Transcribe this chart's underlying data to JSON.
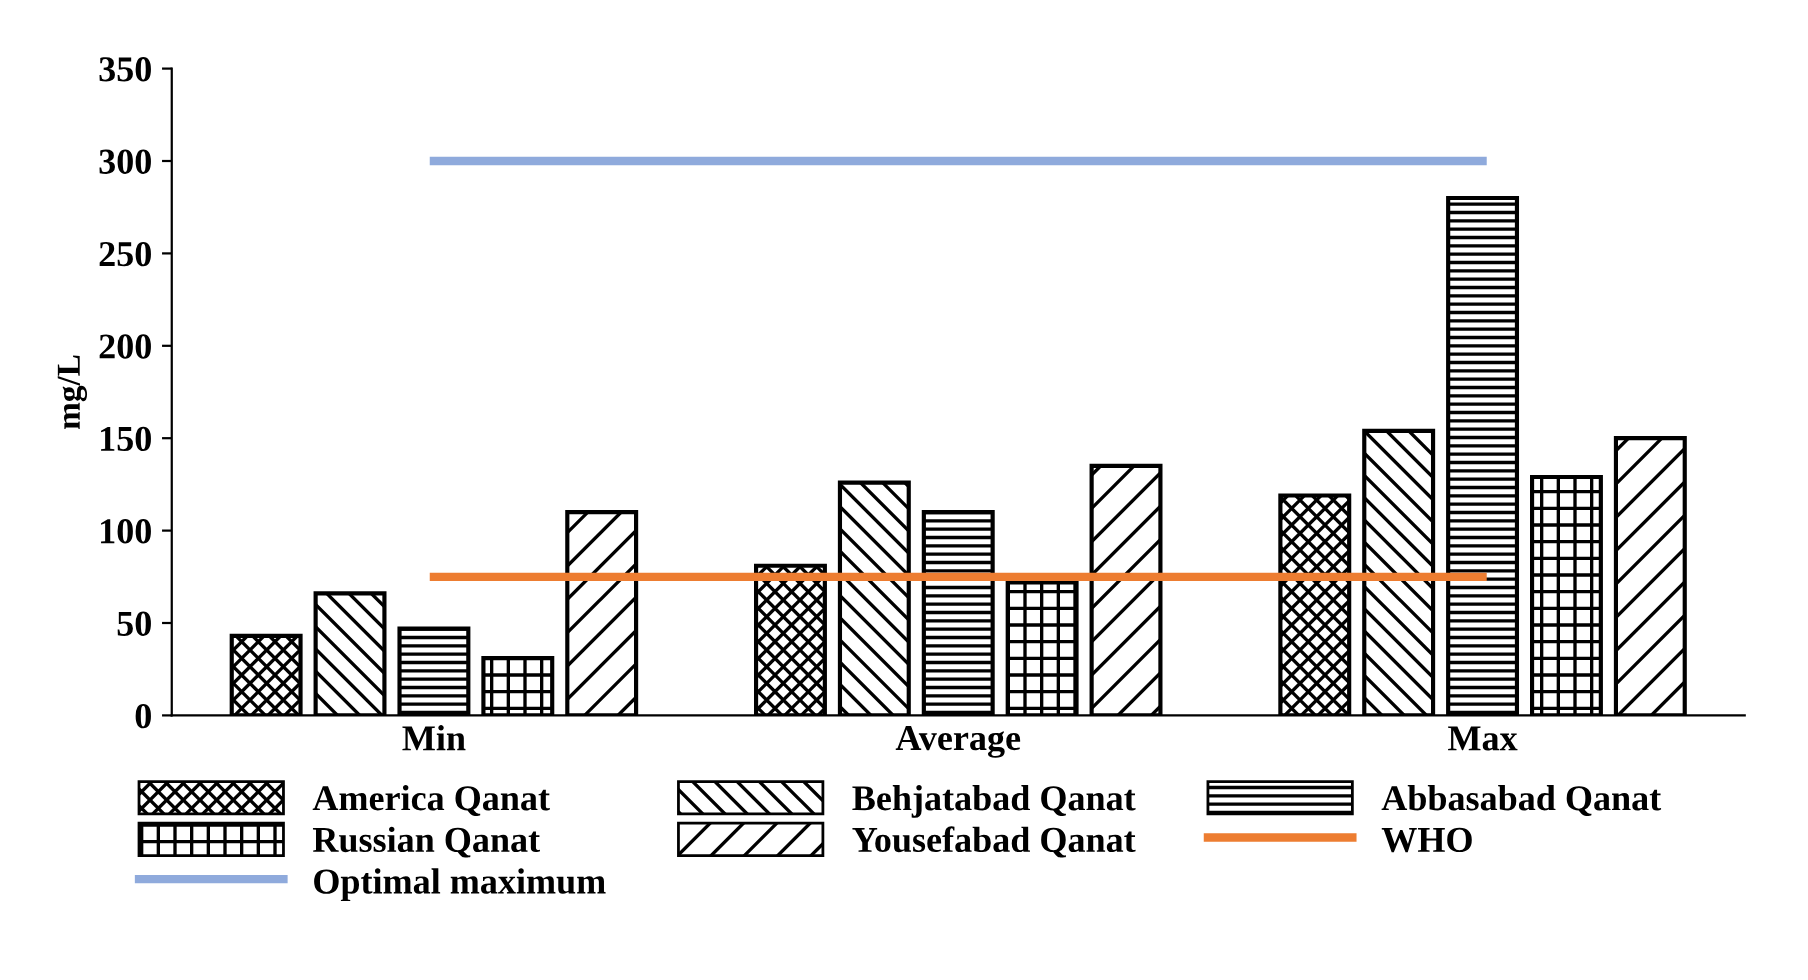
{
  "chart_data": {
    "type": "bar",
    "ylabel": "mg/L",
    "categories": [
      "Min",
      "Average",
      "Max"
    ],
    "series": [
      {
        "name": "America Qanat",
        "color": "#000000",
        "values": [
          43,
          81,
          119
        ]
      },
      {
        "name": "Behjatabad Qanat",
        "color": "#000000",
        "values": [
          66,
          126,
          154
        ]
      },
      {
        "name": "Abbasabad Qanat",
        "color": "#000000",
        "values": [
          47,
          110,
          280
        ]
      },
      {
        "name": "Russian Qanat",
        "color": "#000000",
        "values": [
          31,
          72,
          129
        ]
      },
      {
        "name": "Yousefabad Qanat",
        "color": "#000000",
        "values": [
          110,
          135,
          150
        ]
      },
      {
        "name": "WHO",
        "type": "line",
        "color": "#ed7d31",
        "values": [
          75,
          75,
          75
        ]
      },
      {
        "name": "Optimal maximum",
        "type": "line",
        "color": "#8faadc",
        "values": [
          300,
          300,
          300
        ]
      }
    ],
    "ylim": [
      0,
      350
    ],
    "yticks": [
      0,
      50,
      100,
      150,
      200,
      250,
      300,
      350
    ],
    "grid": false,
    "legend": "bottom",
    "marker": "none"
  }
}
